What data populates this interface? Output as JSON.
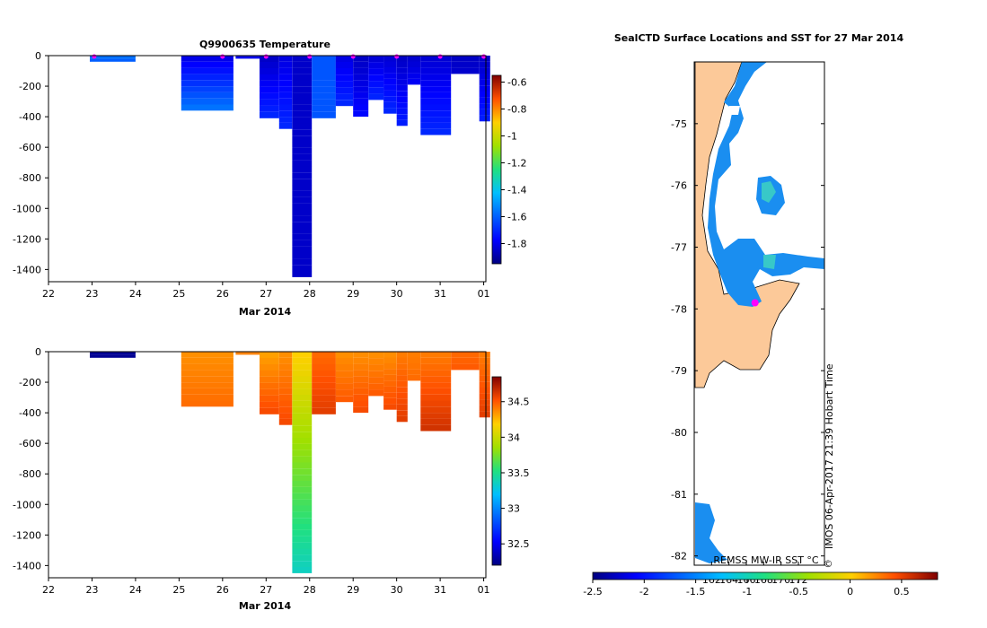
{
  "chart_data": [
    {
      "type": "heatmap",
      "id": "temperature",
      "title": "Q9900635  Temperature",
      "xlabel": "Mar 2014",
      "ylabel": "",
      "xticks": [
        "22",
        "23",
        "24",
        "25",
        "26",
        "27",
        "28",
        "29",
        "30",
        "31",
        "01"
      ],
      "xlim": [
        22,
        32.05
      ],
      "yticks": [
        0,
        -200,
        -400,
        -600,
        -800,
        -1000,
        -1200,
        -1400
      ],
      "ylim": [
        -1480,
        0
      ],
      "colorbar": {
        "ticks": [
          "-0.6",
          "-0.8",
          "-1",
          "-1.2",
          "-1.4",
          "-1.6",
          "-1.8"
        ],
        "range": [
          -1.95,
          -0.55
        ]
      },
      "surface_markers_day": [
        23.05,
        26.0,
        27.0,
        28.0,
        29.0,
        30.0,
        31.0,
        32.0
      ],
      "profiles": [
        {
          "day": 22.95,
          "w": 1.05,
          "depth": 40,
          "top_value": -1.55,
          "bottom_value": -1.62
        },
        {
          "day": 25.05,
          "w": 1.2,
          "depth": 360,
          "top_value": -1.82,
          "bottom_value": -1.55
        },
        {
          "day": 26.3,
          "w": 0.55,
          "depth": 20,
          "top_value": -1.8,
          "bottom_value": -1.8
        },
        {
          "day": 26.85,
          "w": 0.45,
          "depth": 410,
          "top_value": -1.86,
          "bottom_value": -1.7
        },
        {
          "day": 27.3,
          "w": 0.3,
          "depth": 480,
          "top_value": -1.82,
          "bottom_value": -1.7
        },
        {
          "day": 27.6,
          "w": 0.45,
          "depth": 1450,
          "top_value": -1.85,
          "bottom_value": -1.85
        },
        {
          "day": 28.05,
          "w": 0.55,
          "depth": 410,
          "top_value": -1.62,
          "bottom_value": -1.62
        },
        {
          "day": 28.6,
          "w": 0.4,
          "depth": 330,
          "top_value": -1.82,
          "bottom_value": -1.7
        },
        {
          "day": 29.0,
          "w": 0.35,
          "depth": 400,
          "top_value": -1.86,
          "bottom_value": -1.76
        },
        {
          "day": 29.35,
          "w": 0.35,
          "depth": 290,
          "top_value": -1.84,
          "bottom_value": -1.7
        },
        {
          "day": 29.7,
          "w": 0.3,
          "depth": 380,
          "top_value": -1.84,
          "bottom_value": -1.7
        },
        {
          "day": 30.0,
          "w": 0.25,
          "depth": 460,
          "top_value": -1.86,
          "bottom_value": -1.72
        },
        {
          "day": 30.25,
          "w": 0.3,
          "depth": 190,
          "top_value": -1.85,
          "bottom_value": -1.78
        },
        {
          "day": 30.55,
          "w": 0.7,
          "depth": 520,
          "top_value": -1.84,
          "bottom_value": -1.7
        },
        {
          "day": 31.25,
          "w": 0.65,
          "depth": 120,
          "top_value": -1.86,
          "bottom_value": -1.84
        },
        {
          "day": 31.9,
          "w": 0.25,
          "depth": 430,
          "top_value": -1.86,
          "bottom_value": -1.72
        }
      ]
    },
    {
      "type": "heatmap",
      "id": "salinity",
      "title": "",
      "xlabel": "Mar 2014",
      "ylabel": "",
      "xticks": [
        "22",
        "23",
        "24",
        "25",
        "26",
        "27",
        "28",
        "29",
        "30",
        "31",
        "01"
      ],
      "xlim": [
        22,
        32.05
      ],
      "yticks": [
        0,
        -200,
        -400,
        -600,
        -800,
        -1000,
        -1200,
        -1400
      ],
      "ylim": [
        -1480,
        0
      ],
      "colorbar": {
        "ticks": [
          "34.5",
          "34",
          "33.5",
          "33",
          "32.5"
        ],
        "range": [
          32.2,
          34.85
        ]
      },
      "profiles": [
        {
          "day": 22.95,
          "w": 1.05,
          "depth": 40,
          "top_value": 32.25,
          "bottom_value": 32.25
        },
        {
          "day": 25.05,
          "w": 1.2,
          "depth": 360,
          "top_value": 34.35,
          "bottom_value": 34.45
        },
        {
          "day": 26.3,
          "w": 0.55,
          "depth": 20,
          "top_value": 34.4,
          "bottom_value": 34.4
        },
        {
          "day": 26.85,
          "w": 0.45,
          "depth": 410,
          "top_value": 34.3,
          "bottom_value": 34.55
        },
        {
          "day": 27.3,
          "w": 0.3,
          "depth": 480,
          "top_value": 34.35,
          "bottom_value": 34.55
        },
        {
          "day": 27.6,
          "w": 0.45,
          "depth": 1450,
          "top_value": 34.2,
          "bottom_value": 33.35
        },
        {
          "day": 28.05,
          "w": 0.55,
          "depth": 410,
          "top_value": 34.45,
          "bottom_value": 34.6
        },
        {
          "day": 28.6,
          "w": 0.4,
          "depth": 330,
          "top_value": 34.35,
          "bottom_value": 34.5
        },
        {
          "day": 29.0,
          "w": 0.35,
          "depth": 400,
          "top_value": 34.35,
          "bottom_value": 34.55
        },
        {
          "day": 29.35,
          "w": 0.35,
          "depth": 290,
          "top_value": 34.35,
          "bottom_value": 34.5
        },
        {
          "day": 29.7,
          "w": 0.3,
          "depth": 380,
          "top_value": 34.35,
          "bottom_value": 34.55
        },
        {
          "day": 30.0,
          "w": 0.25,
          "depth": 460,
          "top_value": 34.4,
          "bottom_value": 34.6
        },
        {
          "day": 30.25,
          "w": 0.3,
          "depth": 190,
          "top_value": 34.4,
          "bottom_value": 34.45
        },
        {
          "day": 30.55,
          "w": 0.7,
          "depth": 520,
          "top_value": 34.4,
          "bottom_value": 34.65
        },
        {
          "day": 31.25,
          "w": 0.65,
          "depth": 120,
          "top_value": 34.45,
          "bottom_value": 34.5
        },
        {
          "day": 31.9,
          "w": 0.25,
          "depth": 430,
          "top_value": 34.4,
          "bottom_value": 34.6
        }
      ]
    },
    {
      "type": "map",
      "id": "sst-map",
      "title": "SealCTD Surface Locations and SST for 27 Mar 2014",
      "ytick_labels": [
        "-75",
        "-76",
        "-77",
        "-78",
        "-79",
        "-80",
        "-81",
        "-82"
      ],
      "lat_range": [
        -74.0,
        -82.15
      ],
      "xtick_labels": [
        "162",
        "164",
        "166",
        "168",
        "170",
        "172"
      ],
      "lon_range": [
        160.0,
        175.0
      ],
      "colorbar_label": "REMSS MW-IR SST °C",
      "colorbar_ticks": [
        "-2.5",
        "-2",
        "-1.5",
        "-1",
        "-0.5",
        "0",
        "0.5"
      ],
      "colorbar_range": [
        -2.5,
        0.85
      ],
      "credit": "IMOS 06-Apr-2017 21:39 Hobart Time",
      "copyright_symbol": "©",
      "surface_location": {
        "lon": 167.0,
        "lat": -77.9
      }
    }
  ]
}
